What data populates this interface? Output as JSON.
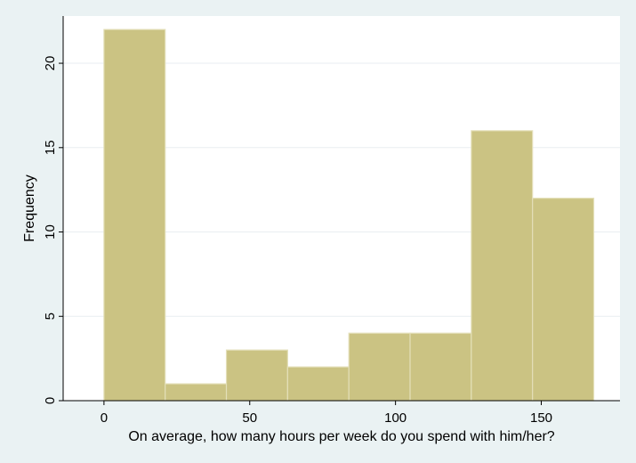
{
  "chart_data": {
    "type": "bar",
    "xlabel": "On average, how many hours per week do you spend with him/her?",
    "ylabel": "Frequency",
    "bins": [
      {
        "x0": 0,
        "x1": 21,
        "value": 22
      },
      {
        "x0": 21,
        "x1": 42,
        "value": 1
      },
      {
        "x0": 42,
        "x1": 63,
        "value": 3
      },
      {
        "x0": 63,
        "x1": 84,
        "value": 2
      },
      {
        "x0": 84,
        "x1": 105,
        "value": 4
      },
      {
        "x0": 105,
        "x1": 126,
        "value": 4
      },
      {
        "x0": 126,
        "x1": 147,
        "value": 16
      },
      {
        "x0": 147,
        "x1": 168,
        "value": 12
      }
    ],
    "xticks": [
      0,
      50,
      100,
      150
    ],
    "xtick_labels": [
      "0",
      "50",
      "100",
      "150"
    ],
    "yticks": [
      0,
      5,
      10,
      15,
      20
    ],
    "ytick_labels": [
      "0",
      "5",
      "10",
      "15",
      "20"
    ],
    "xlim": [
      -14,
      177
    ],
    "ylim": [
      0,
      22.8
    ],
    "grid": true,
    "colors": {
      "bar_fill": "#cbc383",
      "bar_stroke": "#e3dfb8",
      "plot_background": "#ffffff",
      "outer_background": "#eaf2f3",
      "grid": "#e9eef0",
      "axis": "#000000"
    }
  }
}
